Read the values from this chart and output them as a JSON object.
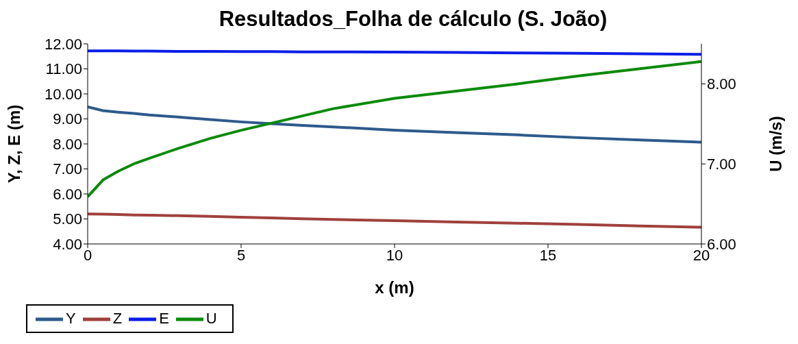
{
  "chart_data": {
    "type": "line",
    "title": "Resultados_Folha de cálculo (S. João)",
    "xlabel": "x (m)",
    "ylabel": "Y, Z, E (m)",
    "y2label": "U (m/s)",
    "x": [
      0,
      0.5,
      1,
      1.5,
      2,
      3,
      4,
      5,
      6,
      7,
      8,
      10,
      12,
      14,
      16,
      18,
      20
    ],
    "series": [
      {
        "name": "Y",
        "color": "#2e5a8c",
        "values": [
          9.48,
          9.33,
          9.27,
          9.22,
          9.16,
          9.07,
          8.97,
          8.88,
          8.81,
          8.74,
          8.68,
          8.55,
          8.45,
          8.36,
          8.25,
          8.16,
          8.07
        ]
      },
      {
        "name": "Z",
        "color": "#a0403c",
        "values": [
          5.2,
          5.19,
          5.18,
          5.16,
          5.15,
          5.13,
          5.1,
          5.07,
          5.04,
          5.01,
          4.98,
          4.93,
          4.88,
          4.83,
          4.78,
          4.72,
          4.67
        ]
      },
      {
        "name": "E",
        "color": "#0a1ee6",
        "values": [
          11.72,
          11.72,
          11.72,
          11.71,
          11.71,
          11.7,
          11.7,
          11.69,
          11.69,
          11.68,
          11.68,
          11.67,
          11.66,
          11.64,
          11.62,
          11.6,
          11.58
        ]
      },
      {
        "name": "U",
        "color": "#0a8a0a",
        "axis": "y2",
        "values": [
          6.59,
          6.8,
          6.91,
          7.0,
          7.07,
          7.2,
          7.32,
          7.42,
          7.51,
          7.6,
          7.69,
          7.82,
          7.91,
          8.0,
          8.1,
          8.19,
          8.28
        ]
      }
    ],
    "xlim": [
      0,
      20
    ],
    "xticks": [
      0,
      5,
      10,
      15,
      20
    ],
    "ylim": [
      4,
      12
    ],
    "yticks": [
      {
        "value": 4,
        "label": "4.00"
      },
      {
        "value": 5,
        "label": "5.00"
      },
      {
        "value": 6,
        "label": "6.00"
      },
      {
        "value": 7,
        "label": "7.00"
      },
      {
        "value": 8,
        "label": "8.00"
      },
      {
        "value": 9,
        "label": "9.00"
      },
      {
        "value": 10,
        "label": "10.00"
      },
      {
        "value": 11,
        "label": "11.00"
      },
      {
        "value": 12,
        "label": "12.00"
      }
    ],
    "y2lim": [
      6,
      8.5
    ],
    "y2ticks": [
      {
        "value": 6,
        "label": "6.00"
      },
      {
        "value": 7,
        "label": "7.00"
      },
      {
        "value": 8,
        "label": "8.00"
      }
    ],
    "legend": "bottom left",
    "marker": "none",
    "line_style": "solid"
  }
}
